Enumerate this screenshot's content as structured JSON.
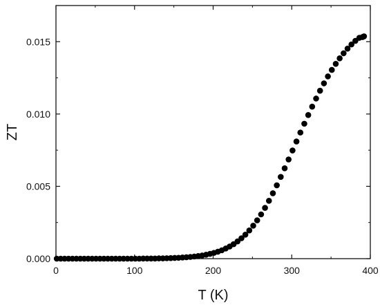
{
  "chart_data": {
    "type": "scatter",
    "xlabel": "T (K)",
    "ylabel": "ZT",
    "xlim": [
      0,
      400
    ],
    "ylim": [
      0,
      0.0175
    ],
    "x_ticks": [
      0,
      100,
      200,
      300,
      400
    ],
    "x_tick_labels": [
      "0",
      "100",
      "200",
      "300",
      "400"
    ],
    "y_ticks": [
      0,
      0.005,
      0.01,
      0.015
    ],
    "y_tick_labels": [
      "0.000",
      "0.005",
      "0.010",
      "0.015"
    ],
    "grid": false,
    "marker": "filled-circle",
    "marker_color": "#000000",
    "series": [
      {
        "x": [
          1,
          6,
          11,
          16,
          21,
          26,
          31,
          36,
          41,
          46,
          51,
          56,
          61,
          66,
          71,
          76,
          81,
          86,
          91,
          96,
          101,
          106,
          111,
          116,
          121,
          126,
          131,
          136,
          141,
          146,
          151,
          156,
          161,
          166,
          171,
          176,
          181,
          186,
          191,
          196,
          201,
          206,
          211,
          216,
          221,
          226,
          231,
          236,
          241,
          246,
          251,
          256,
          261,
          266,
          271,
          276,
          281,
          286,
          291,
          296,
          301,
          306,
          311,
          316,
          321,
          326,
          331,
          336,
          341,
          346,
          351,
          356,
          361,
          366,
          371,
          376,
          381,
          386,
          390,
          392
        ],
        "y": [
          0,
          0,
          0,
          0,
          0,
          0,
          0,
          0,
          0,
          0,
          0,
          0,
          0,
          0,
          0,
          0,
          0,
          0,
          0,
          0,
          0,
          0,
          1e-05,
          1e-05,
          1e-05,
          1e-05,
          2e-05,
          2e-05,
          3e-05,
          4e-05,
          5e-05,
          6e-05,
          8e-05,
          0.0001,
          0.00012,
          0.00015,
          0.00018,
          0.00022,
          0.00027,
          0.00033,
          0.0004,
          0.00048,
          0.00058,
          0.0007,
          0.00084,
          0.001,
          0.00119,
          0.00141,
          0.00166,
          0.00195,
          0.00228,
          0.00265,
          0.00306,
          0.00351,
          0.004,
          0.00452,
          0.00507,
          0.00565,
          0.00625,
          0.00686,
          0.00748,
          0.0081,
          0.00872,
          0.00933,
          0.00993,
          0.01051,
          0.01107,
          0.01161,
          0.01212,
          0.0126,
          0.01305,
          0.01347,
          0.01385,
          0.0142,
          0.01452,
          0.01481,
          0.01506,
          0.01527,
          0.01532,
          0.01537
        ]
      }
    ]
  }
}
